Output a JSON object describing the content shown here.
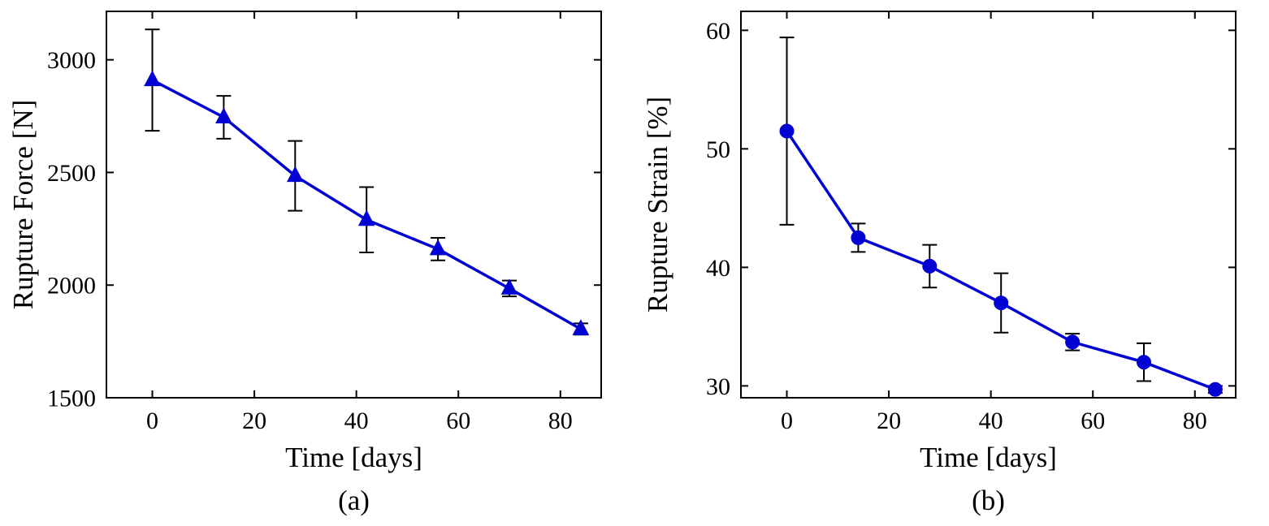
{
  "figure": {
    "background": "#ffffff",
    "accent_color": "#0202d2",
    "axis_color": "#000000",
    "errorbar_color": "#000000"
  },
  "chart_data": [
    {
      "type": "line",
      "panel_label": "(a)",
      "marker": "triangle",
      "xlabel": "Time [days]",
      "ylabel": "Rupture Force [N]",
      "x": [
        0,
        14,
        28,
        42,
        56,
        70,
        84
      ],
      "y": [
        2910,
        2745,
        2485,
        2290,
        2160,
        1985,
        1805
      ],
      "y_err": [
        225,
        95,
        155,
        145,
        50,
        35,
        25
      ],
      "xlim": [
        -9,
        88
      ],
      "ylim": [
        1500,
        3215
      ],
      "xticks": [
        0,
        20,
        40,
        60,
        80
      ],
      "yticks": [
        1500,
        2000,
        2500,
        3000
      ],
      "grid": false,
      "legend_position": "none"
    },
    {
      "type": "line",
      "panel_label": "(b)",
      "marker": "circle",
      "xlabel": "Time [days]",
      "ylabel": "Rupture Strain [%]",
      "x": [
        0,
        14,
        28,
        42,
        56,
        70,
        84
      ],
      "y": [
        51.5,
        42.5,
        40.1,
        37.0,
        33.7,
        32.0,
        29.7
      ],
      "y_err": [
        7.9,
        1.2,
        1.8,
        2.5,
        0.7,
        1.6,
        0.3
      ],
      "xlim": [
        -9,
        88
      ],
      "ylim": [
        29,
        61.6
      ],
      "xticks": [
        0,
        20,
        40,
        60,
        80
      ],
      "yticks": [
        30,
        40,
        50,
        60
      ],
      "grid": false,
      "legend_position": "none"
    }
  ]
}
